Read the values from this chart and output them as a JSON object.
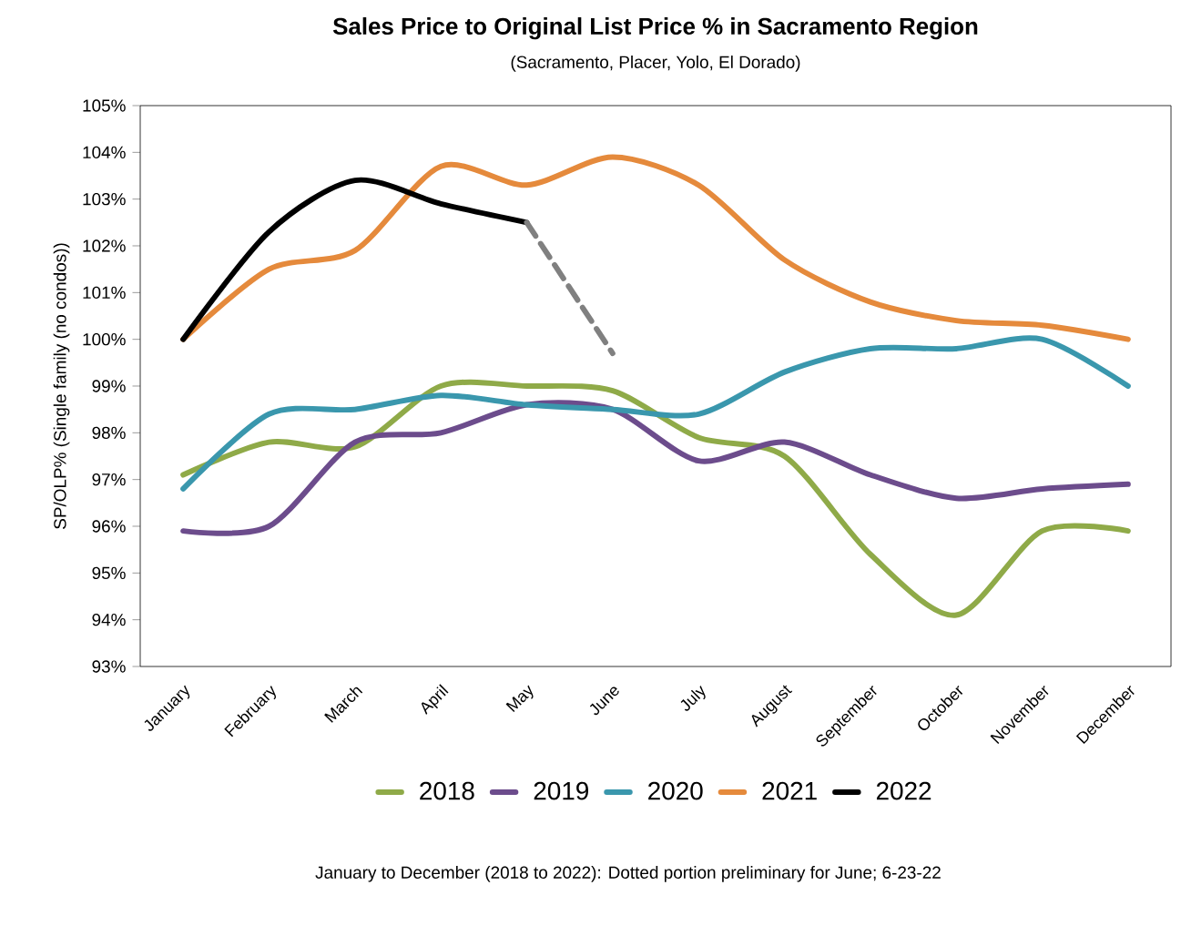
{
  "chart_data": {
    "type": "line",
    "title": "Sales Price to Original List Price % in Sacramento Region",
    "subtitle": "(Sacramento, Placer, Yolo, El Dorado)",
    "ylabel": "SP/OLP% (Single family (no condos))",
    "annotations": [
      "January to December (2018 to 2022):  Dotted portion preliminary for June; 6-23-22"
    ],
    "categories": [
      "January",
      "February",
      "March",
      "April",
      "May",
      "June",
      "July",
      "August",
      "September",
      "October",
      "November",
      "December"
    ],
    "series": [
      {
        "name": "2018",
        "color": "#8faa48",
        "values": [
          97.1,
          97.8,
          97.7,
          99.0,
          99.0,
          98.9,
          97.9,
          97.5,
          95.4,
          94.1,
          95.9,
          95.9
        ]
      },
      {
        "name": "2019",
        "color": "#6c4c8c",
        "values": [
          95.9,
          96.0,
          97.8,
          98.0,
          98.6,
          98.5,
          97.4,
          97.8,
          97.1,
          96.6,
          96.8,
          96.9
        ]
      },
      {
        "name": "2020",
        "color": "#3a97ad",
        "values": [
          96.8,
          98.4,
          98.5,
          98.8,
          98.6,
          98.5,
          98.4,
          99.3,
          99.8,
          99.8,
          100.0,
          99.0
        ]
      },
      {
        "name": "2021",
        "color": "#e58a3c",
        "values": [
          100.0,
          101.5,
          101.9,
          103.7,
          103.3,
          103.9,
          103.3,
          101.7,
          100.8,
          100.4,
          100.3,
          100.0
        ]
      },
      {
        "name": "2022",
        "color": "#000000",
        "values": [
          100.0,
          102.3,
          103.4,
          102.9,
          102.5,
          null,
          null,
          null,
          null,
          null,
          null,
          null
        ]
      },
      {
        "color": "#808080",
        "line_style": "dashed",
        "values": [
          null,
          null,
          null,
          null,
          102.5,
          99.7,
          null,
          null,
          null,
          null,
          null,
          null
        ]
      }
    ],
    "ylim": [
      93,
      105
    ],
    "yticks": [
      {
        "value": 93,
        "label": "93%"
      },
      {
        "value": 94,
        "label": "94%"
      },
      {
        "value": 95,
        "label": "95%"
      },
      {
        "value": 96,
        "label": "96%"
      },
      {
        "value": 97,
        "label": "97%"
      },
      {
        "value": 98,
        "label": "98%"
      },
      {
        "value": 99,
        "label": "99%"
      },
      {
        "value": 100,
        "label": "100%"
      },
      {
        "value": 101,
        "label": "101%"
      },
      {
        "value": 102,
        "label": "102%"
      },
      {
        "value": 103,
        "label": "103%"
      },
      {
        "value": 104,
        "label": "104%"
      },
      {
        "value": 105,
        "label": "105%"
      }
    ],
    "grid": false,
    "legend": "bottom",
    "marker": "none",
    "line_style": "solid"
  }
}
